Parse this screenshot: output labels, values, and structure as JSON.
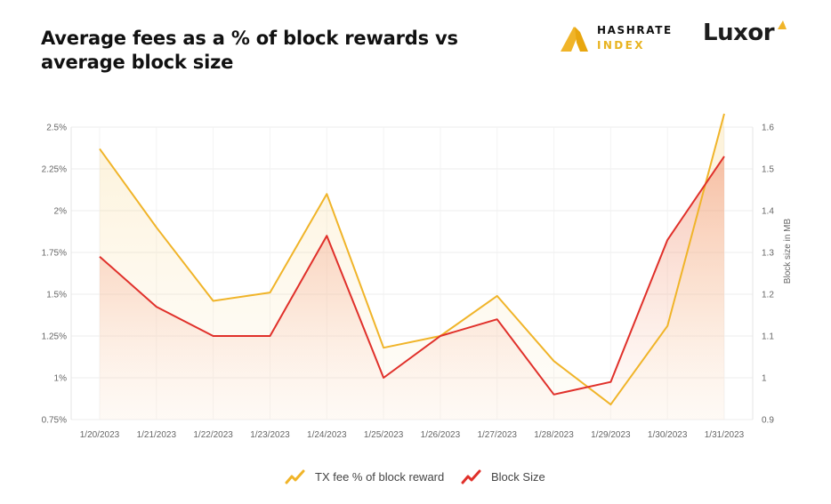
{
  "title": "Average fees as a % of block rewards vs average block size",
  "brand": {
    "hashrate_line1": "HASHRATE",
    "hashrate_line2": "INDEX",
    "luxor": "Luxor"
  },
  "colors": {
    "fee": "#f0b429",
    "size": "#e0302a"
  },
  "legend": {
    "fee": "TX fee % of block reward",
    "size": "Block Size"
  },
  "chart_data": {
    "type": "line",
    "title": "Average fees as a % of block rewards vs average block size",
    "categories": [
      "1/20/2023",
      "1/21/2023",
      "1/22/2023",
      "1/23/2023",
      "1/24/2023",
      "1/25/2023",
      "1/26/2023",
      "1/27/2023",
      "1/28/2023",
      "1/29/2023",
      "1/30/2023",
      "1/31/2023"
    ],
    "y_left": {
      "label": "",
      "ylim": [
        0.75,
        2.5
      ],
      "ticks": [
        0.75,
        1.0,
        1.25,
        1.5,
        1.75,
        2.0,
        2.25,
        2.5
      ],
      "tick_labels": [
        "0.75%",
        "1%",
        "1.25%",
        "1.5%",
        "1.75%",
        "2%",
        "2.25%",
        "2.5%"
      ]
    },
    "y_right": {
      "label": "Block size in MB",
      "ylim": [
        0.9,
        1.6
      ],
      "ticks": [
        0.9,
        1.0,
        1.1,
        1.2,
        1.3,
        1.4,
        1.5,
        1.6
      ],
      "tick_labels": [
        "0.9",
        "1",
        "1.1",
        "1.2",
        "1.3",
        "1.4",
        "1.5",
        "1.6"
      ]
    },
    "series": [
      {
        "name": "TX fee % of block reward",
        "axis": "left",
        "values": [
          2.37,
          1.9,
          1.46,
          1.51,
          2.1,
          1.18,
          1.25,
          1.49,
          1.1,
          0.84,
          1.31,
          2.58
        ]
      },
      {
        "name": "Block Size",
        "axis": "right",
        "values": [
          1.29,
          1.17,
          1.1,
          1.1,
          1.34,
          1.0,
          1.1,
          1.14,
          0.96,
          0.99,
          1.33,
          1.53
        ]
      }
    ],
    "grid": true,
    "legend_position": "bottom-center"
  }
}
